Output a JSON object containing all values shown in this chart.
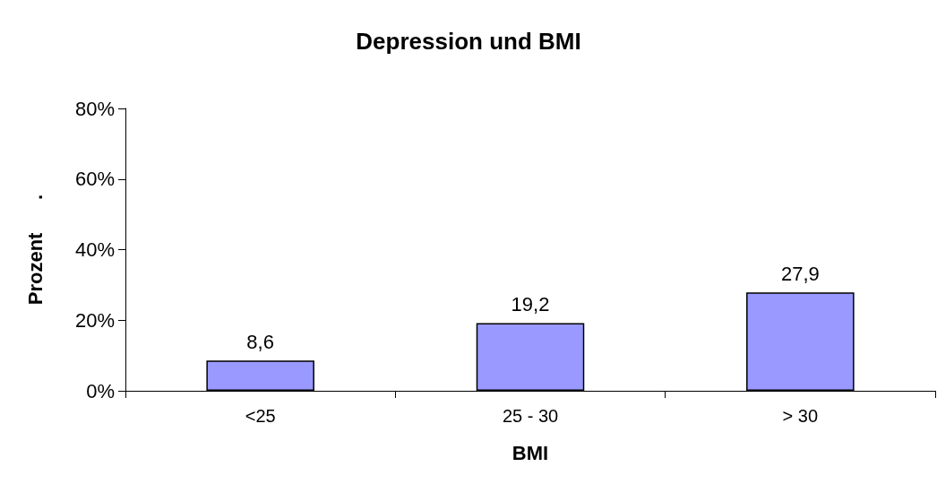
{
  "chart_data": {
    "type": "bar",
    "title": "Depression und BMI",
    "xlabel": "BMI",
    "ylabel": "Prozent      .",
    "categories": [
      "<25",
      "25 - 30",
      "> 30"
    ],
    "values": [
      8.6,
      19.2,
      27.9
    ],
    "value_labels": [
      "8,6",
      "19,2",
      "27,9"
    ],
    "color": "#9999ff",
    "ylim": [
      0,
      80
    ],
    "yticks": [
      {
        "value": 0,
        "label": "0%"
      },
      {
        "value": 20,
        "label": "20%"
      },
      {
        "value": 40,
        "label": "40%"
      },
      {
        "value": 60,
        "label": "60%"
      },
      {
        "value": 80,
        "label": "80%"
      }
    ],
    "grid": false
  }
}
